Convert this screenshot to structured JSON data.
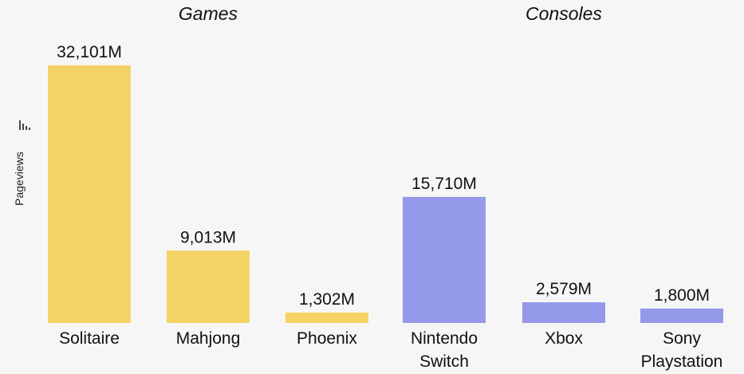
{
  "chart_data": {
    "type": "bar",
    "ylabel": "Pageviews",
    "groups": [
      {
        "name": "Games",
        "color": "#f4d364",
        "categories": [
          [
            "Solitaire"
          ],
          [
            "Mahjong"
          ],
          [
            "Phoenix"
          ]
        ],
        "values": [
          32101,
          9013,
          1302
        ],
        "value_labels": [
          "32,101M",
          "9,013M",
          "1,302M"
        ]
      },
      {
        "name": "Consoles",
        "color": "#9599ea",
        "categories": [
          [
            "Nintendo",
            "Switch"
          ],
          [
            "Xbox"
          ],
          [
            "Sony",
            "Playstation"
          ]
        ],
        "values": [
          15710,
          2579,
          1800
        ],
        "value_labels": [
          "15,710M",
          "2,579M",
          "1,800M"
        ]
      }
    ],
    "ylim": [
      0,
      32101
    ],
    "grid": false,
    "legend": "none"
  },
  "icons": {
    "y_axis_icon": "bar-chart-icon"
  },
  "colors": {
    "background": "#f6f6f6",
    "games": "#f4d364",
    "consoles": "#9599ea"
  }
}
